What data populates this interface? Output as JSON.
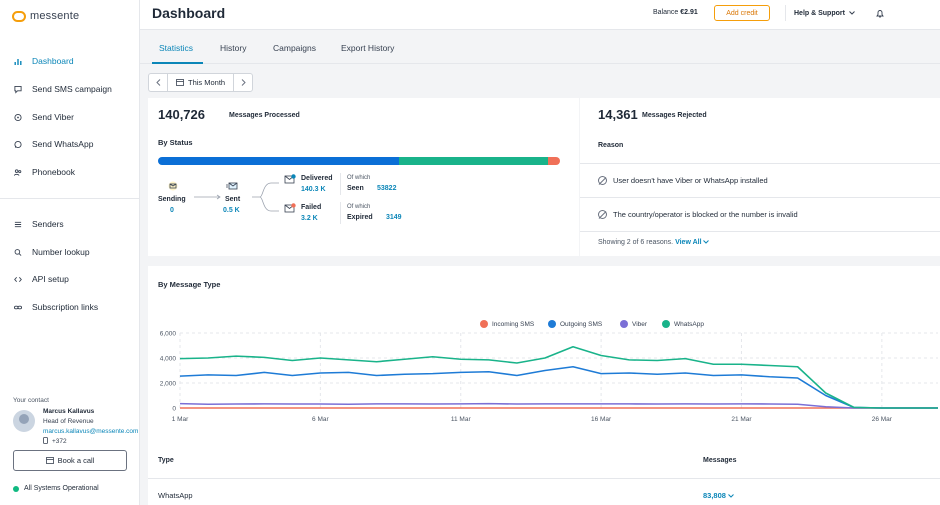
{
  "app": {
    "logo_text": "messente"
  },
  "sidebar": {
    "items": [
      {
        "label": "Dashboard",
        "icon": "chart-icon"
      },
      {
        "label": "Send SMS campaign",
        "icon": "chat-icon"
      },
      {
        "label": "Send Viber",
        "icon": "viber-icon"
      },
      {
        "label": "Send WhatsApp",
        "icon": "whatsapp-icon"
      },
      {
        "label": "Phonebook",
        "icon": "people-icon"
      },
      {
        "label": "Senders",
        "icon": "list-icon"
      },
      {
        "label": "Number lookup",
        "icon": "search-icon"
      },
      {
        "label": "API setup",
        "icon": "code-icon"
      },
      {
        "label": "Subscription links",
        "icon": "link-icon"
      }
    ],
    "contact": {
      "heading": "Your contact",
      "name": "Marcus Kallavus",
      "role": "Head of Revenue",
      "email": "marcus.kallavus@messente.com",
      "phone": "+372"
    },
    "book_call": "Book a call",
    "status": "All Systems Operational"
  },
  "header": {
    "title": "Dashboard",
    "balance_label": "Balance",
    "balance_value": "€2.91",
    "add_credit": "Add credit",
    "help": "Help & Support"
  },
  "tabs": [
    {
      "label": "Statistics",
      "active": true
    },
    {
      "label": "History"
    },
    {
      "label": "Campaigns"
    },
    {
      "label": "Export History"
    }
  ],
  "period": {
    "label": "This Month"
  },
  "processed": {
    "count": "140,726",
    "label": "Messages Processed",
    "by_status": "By Status",
    "bar_segments": [
      {
        "color": "#0b6fd6",
        "share": 0.6
      },
      {
        "color": "#19b38a",
        "share": 0.37
      },
      {
        "color": "#f07058",
        "share": 0.03
      }
    ],
    "flow": {
      "sending_label": "Sending",
      "sending_value": "0",
      "sent_label": "Sent",
      "sent_value": "0.5 K",
      "delivered_label": "Delivered",
      "delivered_value": "140.3 K",
      "failed_label": "Failed",
      "failed_value": "3.2 K",
      "of_which": "Of which",
      "seen_label": "Seen",
      "seen_value": "53822",
      "expired_label": "Expired",
      "expired_value": "3149"
    }
  },
  "rejected": {
    "count": "14,361",
    "label": "Messages Rejected",
    "reason_heading": "Reason",
    "reasons": [
      "User doesn't have Viber or WhatsApp installed",
      "The country/operator is blocked or the number is invalid"
    ],
    "footer": "Showing 2 of 6 reasons.",
    "view_all": "View All"
  },
  "by_type": {
    "heading": "By Message Type",
    "type_col": "Type",
    "messages_col": "Messages",
    "rows": [
      {
        "type": "WhatsApp",
        "messages": "83,808"
      }
    ]
  },
  "chart_data": {
    "type": "line",
    "x": [
      "1 Mar",
      "2 Mar",
      "3 Mar",
      "4 Mar",
      "5 Mar",
      "6 Mar",
      "7 Mar",
      "8 Mar",
      "9 Mar",
      "10 Mar",
      "11 Mar",
      "12 Mar",
      "13 Mar",
      "14 Mar",
      "15 Mar",
      "16 Mar",
      "17 Mar",
      "18 Mar",
      "19 Mar",
      "20 Mar",
      "21 Mar",
      "22 Mar",
      "23 Mar",
      "24 Mar",
      "25 Mar",
      "26 Mar",
      "27 Mar",
      "28 Mar"
    ],
    "x_tick_labels": [
      "1 Mar",
      "6 Mar",
      "11 Mar",
      "16 Mar",
      "21 Mar",
      "26 Mar"
    ],
    "y_tick_labels": [
      "0",
      "2,000",
      "4,000",
      "6,000"
    ],
    "ylim": [
      0,
      6000
    ],
    "legend_position": "top-center",
    "series": [
      {
        "name": "Incoming SMS",
        "color": "#f07058",
        "values": [
          0,
          0,
          0,
          0,
          0,
          0,
          0,
          0,
          0,
          0,
          0,
          0,
          0,
          0,
          0,
          0,
          0,
          0,
          0,
          0,
          0,
          0,
          0,
          0,
          0,
          0,
          0,
          0
        ]
      },
      {
        "name": "Outgoing SMS",
        "color": "#1e7bd6",
        "values": [
          2550,
          2650,
          2600,
          2850,
          2600,
          2800,
          2850,
          2600,
          2700,
          2750,
          2850,
          2900,
          2600,
          3000,
          3300,
          2750,
          2800,
          2700,
          2800,
          2600,
          2650,
          2500,
          2400,
          1000,
          50,
          0,
          0,
          0
        ]
      },
      {
        "name": "Viber",
        "color": "#7b6fd6",
        "values": [
          350,
          300,
          320,
          330,
          320,
          320,
          300,
          330,
          330,
          320,
          330,
          350,
          320,
          330,
          330,
          330,
          330,
          320,
          330,
          320,
          330,
          320,
          300,
          100,
          0,
          0,
          0,
          0
        ]
      },
      {
        "name": "WhatsApp",
        "color": "#19b38a",
        "values": [
          3950,
          4000,
          4150,
          4050,
          3800,
          4000,
          3850,
          3700,
          3900,
          4100,
          3900,
          3850,
          3600,
          4000,
          4900,
          4200,
          3850,
          3800,
          3950,
          3500,
          3500,
          3400,
          3300,
          1200,
          50,
          0,
          0,
          0
        ]
      }
    ]
  }
}
